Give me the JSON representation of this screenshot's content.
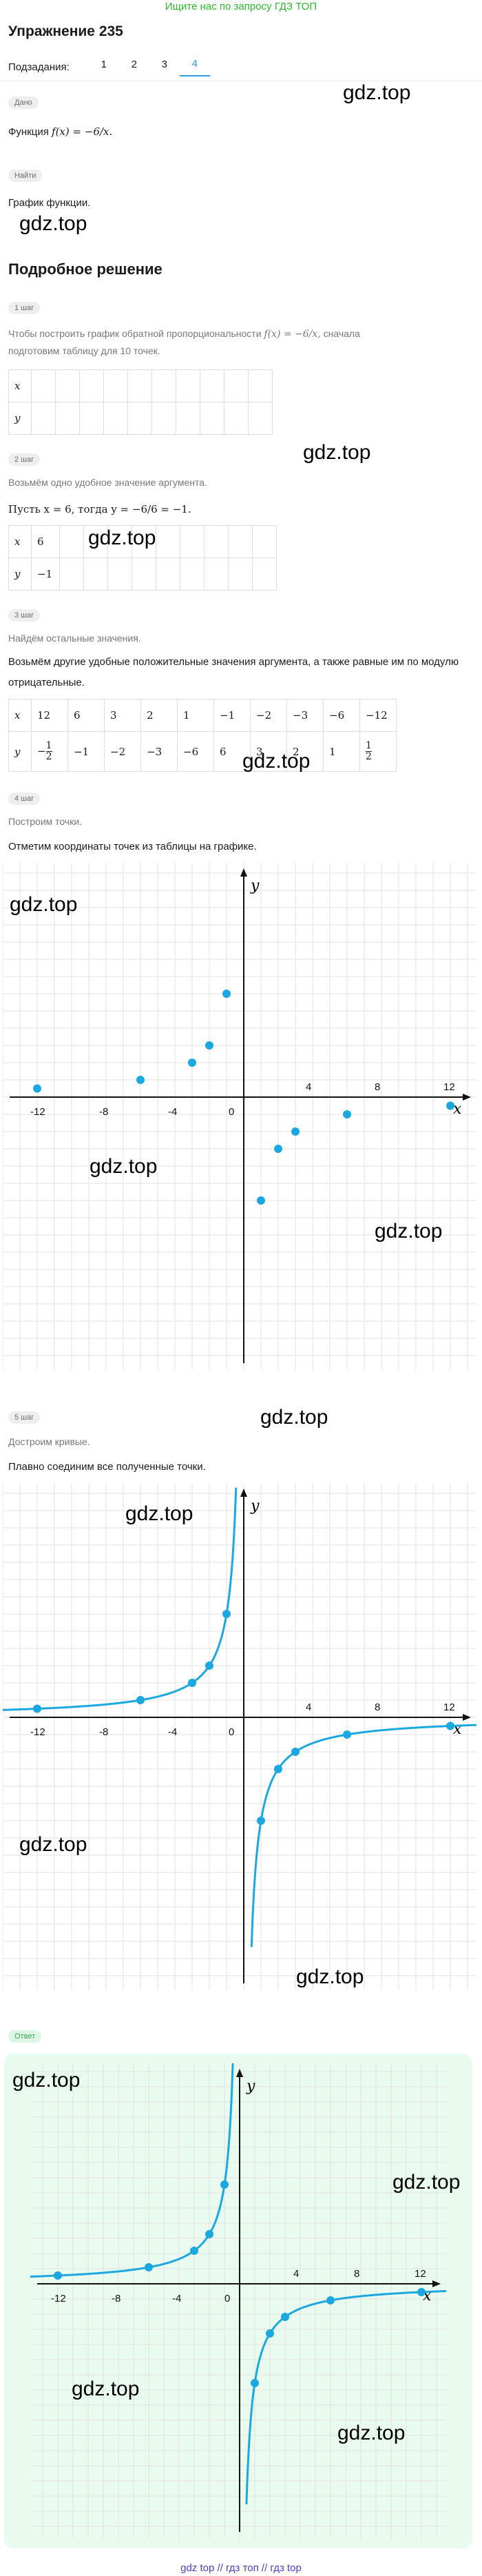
{
  "top_link": "Ищите нас по запросу ГДЗ ТОП",
  "title": "Упражнение 235",
  "subtasks": {
    "label": "Подзадания:",
    "items": [
      "1",
      "2",
      "3",
      "4"
    ],
    "active": "4"
  },
  "given": {
    "badge": "Дано",
    "text_prefix": "Функция",
    "formula": "f(x) = −6/x."
  },
  "find": {
    "badge": "Найти",
    "text": "График функции."
  },
  "solution_title": "Подробное решение",
  "watermark": "gdz.top",
  "steps": [
    {
      "badge": "1 шаг",
      "desc_a": "Чтобы построить график обратной пропорциональности",
      "desc_formula": "f(x) = −6/x,",
      "desc_b": "сначала",
      "desc_c": "подготовим таблицу для 10 точек.",
      "row_x": "x",
      "row_y": "y"
    },
    {
      "badge": "2 шаг",
      "desc": "Возьмём одно удобное значение аргумента.",
      "text": "Пусть x = 6, тогда y = −6/6 = −1.",
      "x": "6",
      "y": "−1"
    },
    {
      "badge": "3 шаг",
      "desc": "Найдём остальные значения.",
      "text": "Возьмём другие удобные положительные значения аргумента, а также равные им по модулю отрицательные.",
      "xs": [
        "12",
        "6",
        "3",
        "2",
        "1",
        "−1",
        "−2",
        "−3",
        "−6",
        "−12"
      ],
      "ys": [
        "−1/2",
        "−1",
        "−2",
        "−3",
        "−6",
        "6",
        "3",
        "2",
        "1",
        "1/2"
      ]
    },
    {
      "badge": "4 шаг",
      "desc": "Построим точки.",
      "text": "Отметим координаты точек из таблицы на графике."
    },
    {
      "badge": "5 шаг",
      "desc": "Достроим кривые.",
      "text": "Плавно соединим все полученные точки."
    }
  ],
  "answer_badge": "Ответ",
  "chart_data": {
    "type": "scatter",
    "function": "y = -6/x",
    "points": [
      [
        -12,
        0.5
      ],
      [
        -6,
        1
      ],
      [
        -3,
        2
      ],
      [
        -2,
        3
      ],
      [
        -1,
        6
      ],
      [
        1,
        -6
      ],
      [
        2,
        -3
      ],
      [
        3,
        -2
      ],
      [
        6,
        -1
      ],
      [
        12,
        -0.5
      ]
    ],
    "tick_labels": [
      "-12",
      "-8",
      "-4",
      "0",
      "4",
      "8",
      "12"
    ],
    "xlabel": "x",
    "ylabel": "y",
    "point_color": "#1ba8e0",
    "curve_color": "#1ba8e0"
  },
  "footer": "gdz top  //  гдз топ  //  гдз top"
}
